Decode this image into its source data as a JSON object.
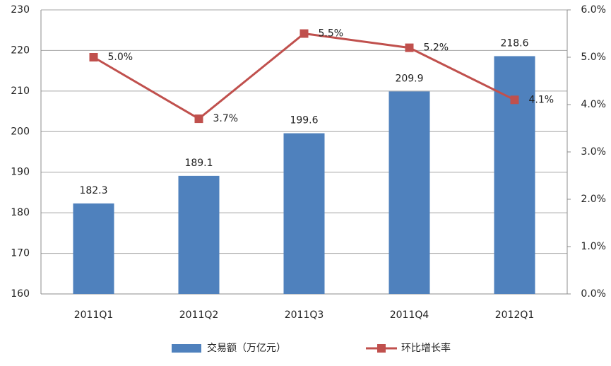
{
  "chart_data": {
    "type": "bar",
    "categories": [
      "2011Q1",
      "2011Q2",
      "2011Q3",
      "2011Q4",
      "2012Q1"
    ],
    "series": [
      {
        "name": "交易额（万亿元）",
        "type": "bar",
        "color": "#4f81bd",
        "values": [
          182.3,
          189.1,
          199.6,
          209.9,
          218.6
        ]
      },
      {
        "name": "环比增长率",
        "type": "line",
        "axis": "y2",
        "color": "#c0504d",
        "values": [
          5.0,
          3.7,
          5.5,
          5.2,
          4.1
        ],
        "value_labels": [
          "5.0%",
          "3.7%",
          "5.5%",
          "5.2%",
          "4.1%"
        ]
      }
    ],
    "ylim": [
      160,
      230
    ],
    "yticks": [
      160,
      170,
      180,
      190,
      200,
      210,
      220,
      230
    ],
    "y2lim": [
      0,
      6
    ],
    "y2ticks": [
      {
        "value": 0,
        "label": "0.0%"
      },
      {
        "value": 1,
        "label": "1.0%"
      },
      {
        "value": 2,
        "label": "2.0%"
      },
      {
        "value": 3,
        "label": "3.0%"
      },
      {
        "value": 4,
        "label": "4.0%"
      },
      {
        "value": 5,
        "label": "5.0%"
      },
      {
        "value": 6,
        "label": "6.0%"
      }
    ],
    "grid": true,
    "legend": "bottom"
  }
}
